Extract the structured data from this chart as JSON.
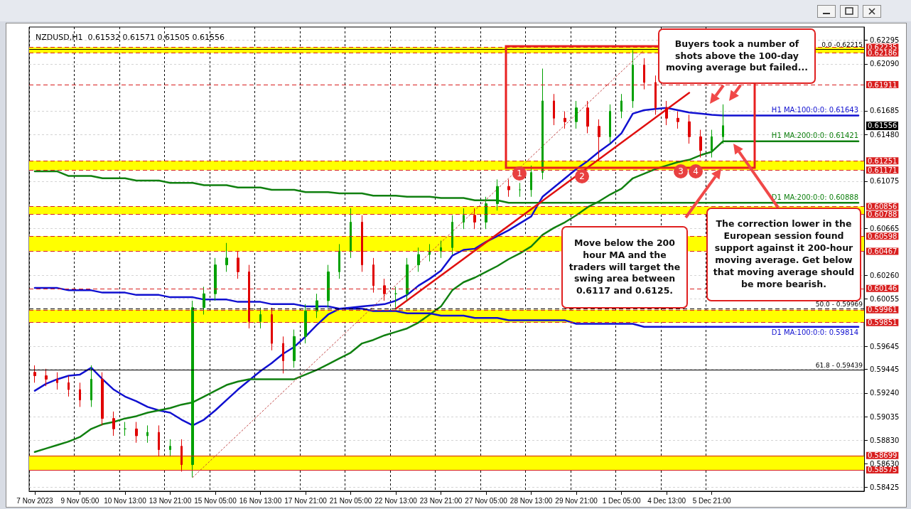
{
  "chart_data": {
    "type": "candlestick",
    "title": "NZDUSD,H1  0.61532 0.61571 0.61505 0.61556",
    "categories": [
      "7 Nov 2023",
      null,
      null,
      null,
      "9 Nov 05:00",
      null,
      null,
      null,
      "10 Nov 13:00",
      null,
      null,
      null,
      "13 Nov 21:00",
      null,
      null,
      null,
      "15 Nov 05:00",
      null,
      null,
      null,
      "16 Nov 13:00",
      null,
      null,
      null,
      "17 Nov 21:00",
      null,
      null,
      null,
      "21 Nov 05:00",
      null,
      null,
      null,
      "22 Nov 13:00",
      null,
      null,
      null,
      "23 Nov 21:00",
      null,
      null,
      null,
      "27 Nov 05:00",
      null,
      null,
      null,
      "28 Nov 13:00",
      null,
      null,
      null,
      "29 Nov 21:00",
      null,
      null,
      null,
      "1 Dec 05:00",
      null,
      null,
      null,
      "4 Dec 13:00",
      null,
      null,
      null,
      "5 Dec 21:00",
      null,
      null,
      null,
      null,
      null,
      null,
      null,
      null,
      null,
      null,
      null,
      null,
      null
    ],
    "ohlc": [
      [
        0.5942,
        0.5948,
        0.5933,
        0.5939
      ],
      [
        0.5939,
        0.5945,
        0.593,
        0.5936
      ],
      [
        0.5936,
        0.5942,
        0.5927,
        0.5933
      ],
      [
        0.5933,
        0.5939,
        0.5921,
        0.5927
      ],
      [
        0.5927,
        0.5933,
        0.5912,
        0.5918
      ],
      [
        0.5918,
        0.5948,
        0.5912,
        0.5936
      ],
      [
        0.5936,
        0.5942,
        0.5896,
        0.5902
      ],
      [
        0.5902,
        0.5908,
        0.5887,
        0.5893
      ],
      [
        0.5893,
        0.5899,
        0.5887,
        0.5893
      ],
      [
        0.5893,
        0.5899,
        0.5881,
        0.5887
      ],
      [
        0.5887,
        0.5896,
        0.5881,
        0.589
      ],
      [
        0.589,
        0.5896,
        0.5869,
        0.5875
      ],
      [
        0.5875,
        0.5884,
        0.5869,
        0.5878
      ],
      [
        0.5878,
        0.5884,
        0.5856,
        0.5862
      ],
      [
        0.5862,
        0.6004,
        0.5851,
        0.5998
      ],
      [
        0.5998,
        0.6016,
        0.5992,
        0.601
      ],
      [
        0.601,
        0.6041,
        0.6004,
        0.6035
      ],
      [
        0.6035,
        0.6054,
        0.6029,
        0.6041
      ],
      [
        0.6041,
        0.6047,
        0.6023,
        0.6029
      ],
      [
        0.6029,
        0.6035,
        0.598,
        0.5986
      ],
      [
        0.5986,
        0.5998,
        0.598,
        0.5992
      ],
      [
        0.5992,
        0.5998,
        0.5961,
        0.5967
      ],
      [
        0.5967,
        0.5973,
        0.5941,
        0.5952
      ],
      [
        0.5952,
        0.5979,
        0.5946,
        0.5973
      ],
      [
        0.5973,
        0.6001,
        0.5967,
        0.5995
      ],
      [
        0.5995,
        0.601,
        0.5989,
        0.6004
      ],
      [
        0.6004,
        0.6035,
        0.5998,
        0.6029
      ],
      [
        0.6029,
        0.6053,
        0.6023,
        0.6047
      ],
      [
        0.6047,
        0.6084,
        0.6041,
        0.6072
      ],
      [
        0.6072,
        0.6078,
        0.6029,
        0.6035
      ],
      [
        0.6035,
        0.6041,
        0.6011,
        0.6017
      ],
      [
        0.6017,
        0.6023,
        0.6004,
        0.601
      ],
      [
        0.601,
        0.6016,
        0.5998,
        0.601
      ],
      [
        0.601,
        0.6041,
        0.6004,
        0.6035
      ],
      [
        0.6035,
        0.605,
        0.6029,
        0.6044
      ],
      [
        0.6044,
        0.6053,
        0.6038,
        0.6047
      ],
      [
        0.6047,
        0.6056,
        0.6041,
        0.605
      ],
      [
        0.605,
        0.6078,
        0.6044,
        0.6072
      ],
      [
        0.6072,
        0.6084,
        0.6066,
        0.6078
      ],
      [
        0.6078,
        0.6084,
        0.6066,
        0.6072
      ],
      [
        0.6072,
        0.6094,
        0.6066,
        0.6088
      ],
      [
        0.6088,
        0.6109,
        0.6082,
        0.6103
      ],
      [
        0.6103,
        0.6109,
        0.6094,
        0.61
      ],
      [
        0.61,
        0.6106,
        0.6094,
        0.61
      ],
      [
        0.61,
        0.6121,
        0.6094,
        0.6115
      ],
      [
        0.6115,
        0.6205,
        0.6109,
        0.6177
      ],
      [
        0.6177,
        0.6183,
        0.6156,
        0.6162
      ],
      [
        0.6162,
        0.6168,
        0.6153,
        0.6159
      ],
      [
        0.6159,
        0.6177,
        0.6153,
        0.6171
      ],
      [
        0.6171,
        0.6177,
        0.6149,
        0.6155
      ],
      [
        0.6155,
        0.6161,
        0.6125,
        0.6146
      ],
      [
        0.6146,
        0.6174,
        0.614,
        0.6168
      ],
      [
        0.6168,
        0.6183,
        0.6162,
        0.6177
      ],
      [
        0.6177,
        0.6221,
        0.6171,
        0.6208
      ],
      [
        0.6208,
        0.6214,
        0.6187,
        0.6193
      ],
      [
        0.6193,
        0.6199,
        0.6165,
        0.6171
      ],
      [
        0.6171,
        0.6177,
        0.6156,
        0.6162
      ],
      [
        0.6162,
        0.6168,
        0.6153,
        0.6159
      ],
      [
        0.6159,
        0.6165,
        0.614,
        0.6146
      ],
      [
        0.6146,
        0.6152,
        0.6128,
        0.6134
      ],
      [
        0.6134,
        0.6152,
        0.6128,
        0.6146
      ],
      [
        0.6146,
        0.6174,
        0.614,
        0.61556
      ],
      null,
      null,
      null,
      null,
      null,
      null,
      null,
      null,
      null,
      null,
      null,
      null
    ],
    "colors": [
      "#e00000",
      "#e00000",
      "#e00000",
      "#e00000",
      "#e00000",
      "#00a000",
      "#e00000",
      "#e00000",
      "#00a000",
      "#e00000",
      "#00a000",
      "#e00000",
      "#00a000",
      "#e00000",
      "#00a000",
      "#00a000",
      "#00a000",
      "#00a000",
      "#e00000",
      "#e00000",
      "#00a000",
      "#e00000",
      "#e00000",
      "#00a000",
      "#00a000",
      "#00a000",
      "#00a000",
      "#00a000",
      "#00a000",
      "#e00000",
      "#e00000",
      "#e00000",
      "#00a000",
      "#00a000",
      "#00a000",
      "#00a000",
      "#00a000",
      "#00a000",
      "#00a000",
      "#e00000",
      "#00a000",
      "#00a000",
      "#e00000",
      "#00a000",
      "#00a000",
      "#00a000",
      "#e00000",
      "#e00000",
      "#00a000",
      "#e00000",
      "#e00000",
      "#00a000",
      "#00a000",
      "#00a000",
      "#e00000",
      "#e00000",
      "#e00000",
      "#e00000",
      "#e00000",
      "#e00000",
      "#00a000",
      "#00a000",
      null,
      null,
      null,
      null,
      null,
      null,
      null,
      null,
      null,
      null,
      null,
      null
    ],
    "series": [
      {
        "type": "line",
        "name": "H1 MA:100:0:0: 0.61643",
        "color": "#1010d0",
        "values": [
          0.5926,
          0.5932,
          0.5936,
          0.5939,
          0.594,
          0.5946,
          0.5936,
          0.5927,
          0.5921,
          0.5917,
          0.5912,
          0.5909,
          0.5907,
          0.5901,
          0.5896,
          0.5901,
          0.5909,
          0.5918,
          0.5927,
          0.5935,
          0.5943,
          0.595,
          0.5958,
          0.5964,
          0.5973,
          0.5983,
          0.5992,
          0.5997,
          0.5998,
          0.5999,
          0.6,
          0.6001,
          0.6004,
          0.6009,
          0.6017,
          0.6023,
          0.603,
          0.6043,
          0.6048,
          0.6049,
          0.6055,
          0.606,
          0.6065,
          0.6071,
          0.6077,
          0.6094,
          0.6102,
          0.611,
          0.6118,
          0.6125,
          0.6133,
          0.614,
          0.6149,
          0.6166,
          0.6169,
          0.617,
          0.6171,
          0.6169,
          0.6167,
          0.6166,
          0.6165,
          0.61643,
          0.61643,
          0.61643,
          0.61643,
          0.61643,
          0.61643,
          0.61643,
          0.61643,
          0.61643,
          0.61643,
          0.61643,
          0.61643,
          0.61643
        ]
      },
      {
        "type": "line",
        "name": "H1 MA:200:0:0: 0.61421",
        "color": "#108010",
        "values": [
          0.5873,
          0.5876,
          0.5879,
          0.5882,
          0.5886,
          0.5893,
          0.5897,
          0.5899,
          0.5902,
          0.5904,
          0.5907,
          0.5909,
          0.5911,
          0.5914,
          0.5916,
          0.5921,
          0.5926,
          0.5931,
          0.5934,
          0.5936,
          0.5936,
          0.5936,
          0.5936,
          0.5936,
          0.594,
          0.5944,
          0.5949,
          0.5954,
          0.5959,
          0.5967,
          0.597,
          0.5974,
          0.5977,
          0.598,
          0.5985,
          0.5992,
          0.5999,
          0.6013,
          0.602,
          0.6024,
          0.6029,
          0.6034,
          0.604,
          0.6045,
          0.6051,
          0.6061,
          0.6067,
          0.6072,
          0.6078,
          0.6085,
          0.609,
          0.6096,
          0.6101,
          0.611,
          0.6114,
          0.6118,
          0.6121,
          0.6124,
          0.6126,
          0.613,
          0.6133,
          0.61421,
          0.61421,
          0.61421,
          0.61421,
          0.61421,
          0.61421,
          0.61421,
          0.61421,
          0.61421,
          0.61421,
          0.61421,
          0.61421,
          0.61421
        ]
      },
      {
        "type": "line",
        "name": "D1 MA:200:0:0: 0.60888",
        "color": "#108010",
        "values": [
          0.6116,
          0.6116,
          0.6116,
          0.6112,
          0.6112,
          0.6112,
          0.611,
          0.611,
          0.611,
          0.6108,
          0.6108,
          0.6108,
          0.6106,
          0.6106,
          0.6106,
          0.6104,
          0.6104,
          0.6104,
          0.6102,
          0.6102,
          0.6102,
          0.61,
          0.61,
          0.61,
          0.6098,
          0.6098,
          0.6098,
          0.6097,
          0.6097,
          0.6097,
          0.6095,
          0.6095,
          0.6095,
          0.6094,
          0.6094,
          0.6094,
          0.6093,
          0.6093,
          0.6093,
          0.6091,
          0.6091,
          0.6091,
          0.60888,
          0.60888,
          0.60888,
          0.60888,
          0.60888,
          0.60888,
          0.60888,
          0.60888,
          0.60888,
          0.60888,
          0.60888,
          0.60888,
          0.60888,
          0.60888,
          0.60888,
          0.60888,
          0.60888,
          0.60888,
          0.60888,
          0.60888,
          0.60888,
          0.60888,
          0.60888,
          0.60888,
          0.60888,
          0.60888,
          0.60888,
          0.60888,
          0.60888,
          0.60888,
          0.60888,
          0.60888
        ]
      },
      {
        "type": "line",
        "name": "D1 MA:100:0:0: 0.59814",
        "color": "#1010d0",
        "values": [
          0.6015,
          0.6015,
          0.6015,
          0.6013,
          0.6013,
          0.6013,
          0.6011,
          0.6011,
          0.6011,
          0.6009,
          0.6009,
          0.6009,
          0.6007,
          0.6007,
          0.6007,
          0.6005,
          0.6005,
          0.6005,
          0.6003,
          0.6003,
          0.6003,
          0.6001,
          0.6001,
          0.6001,
          0.5999,
          0.5999,
          0.5999,
          0.5997,
          0.5997,
          0.5997,
          0.5995,
          0.5995,
          0.5995,
          0.5993,
          0.5993,
          0.5993,
          0.5991,
          0.5991,
          0.5991,
          0.5989,
          0.5989,
          0.5989,
          0.5987,
          0.5987,
          0.5987,
          0.5987,
          0.5987,
          0.5987,
          0.5984,
          0.5984,
          0.5984,
          0.5984,
          0.5984,
          0.5984,
          0.59814,
          0.59814,
          0.59814,
          0.59814,
          0.59814,
          0.59814,
          0.59814,
          0.59814,
          0.59814,
          0.59814,
          0.59814,
          0.59814,
          0.59814,
          0.59814,
          0.59814,
          0.59814,
          0.59814,
          0.59814,
          0.59814,
          0.59814
        ]
      },
      {
        "type": "line",
        "color": "#e01010",
        "values": [
          null,
          null,
          null,
          null,
          null,
          null,
          null,
          null,
          null,
          null,
          null,
          null,
          null,
          null,
          null,
          null,
          null,
          null,
          null,
          null,
          null,
          null,
          null,
          null,
          null,
          null,
          null,
          null,
          null,
          null,
          null,
          null,
          0.5997,
          null,
          null,
          null,
          null,
          null,
          null,
          null,
          null,
          null,
          null,
          null,
          null,
          null,
          null,
          null,
          null,
          null,
          null,
          null,
          null,
          null,
          null,
          null,
          null,
          null,
          0.6184,
          null,
          null,
          null,
          null,
          null,
          null,
          null,
          null,
          null,
          null,
          null,
          null,
          null,
          null,
          null
        ]
      },
      {
        "type": "line",
        "color": "#c04040",
        "line_style": "dotted",
        "values": [
          null,
          null,
          null,
          null,
          null,
          null,
          null,
          null,
          null,
          null,
          null,
          null,
          null,
          null,
          0.5851,
          null,
          null,
          null,
          null,
          null,
          null,
          null,
          null,
          null,
          null,
          null,
          null,
          null,
          null,
          null,
          null,
          null,
          null,
          null,
          null,
          null,
          null,
          null,
          null,
          null,
          null,
          null,
          null,
          null,
          null,
          null,
          null,
          null,
          null,
          null,
          null,
          null,
          null,
          null,
          0.6221,
          null,
          null,
          null,
          null,
          null,
          null,
          null,
          null,
          null,
          null,
          null,
          null,
          null,
          null,
          null,
          null,
          null,
          null,
          null
        ]
      }
    ],
    "ylim": [
      0.5839,
      0.6241
    ],
    "yticks": [
      0.62295,
      {
        "value": 0.6209,
        "label": "0.62090"
      },
      0.61685,
      {
        "value": 0.6148,
        "label": "0.61480"
      },
      0.61075,
      0.60665,
      {
        "value": 0.6026,
        "label": "0.60260"
      },
      0.60055,
      0.59645,
      0.59445,
      {
        "value": 0.5924,
        "label": "0.59240"
      },
      0.59035,
      {
        "value": 0.5883,
        "label": "0.58830"
      },
      {
        "value": 0.5863,
        "label": "0.58630"
      },
      0.58425
    ],
    "grid": true,
    "marker": "none",
    "bands": [
      {
        "axis": "y",
        "from": 0.62186,
        "to": 0.62235,
        "color": "#ffff00"
      },
      {
        "axis": "y",
        "from": 0.61171,
        "to": 0.61251,
        "color": "#ffff00"
      },
      {
        "axis": "y",
        "from": 0.60788,
        "to": 0.60856,
        "color": "#ffff00"
      },
      {
        "axis": "y",
        "from": 0.60467,
        "to": 0.60598,
        "color": "#ffff00"
      },
      {
        "axis": "y",
        "from": 0.59851,
        "to": 0.59961,
        "color": "#ffff00"
      },
      {
        "axis": "y",
        "from": 0.58575,
        "to": 0.58699,
        "color": "#ffff00"
      }
    ],
    "ref_lines": [
      {
        "axis": "y",
        "value": 0.62235,
        "label": "0.62235",
        "color": "#d81e1e",
        "line_style": "dashed"
      },
      {
        "axis": "y",
        "value": 0.62186,
        "label": "0.62186",
        "color": "#d81e1e",
        "line_style": "dashed"
      },
      {
        "axis": "y",
        "value": 0.62215,
        "color": "#000000",
        "line_style": "solid"
      },
      {
        "axis": "y",
        "value": 0.61911,
        "label": "0.61911",
        "color": "#d81e1e",
        "line_style": "dashed"
      },
      {
        "axis": "y",
        "value": 0.61251,
        "label": "0.61251",
        "color": "#d81e1e",
        "line_style": "dashed"
      },
      {
        "axis": "y",
        "value": 0.61171,
        "label": "0.61171",
        "color": "#d81e1e",
        "line_style": "dashed"
      },
      {
        "axis": "y",
        "value": 0.60856,
        "label": "0.60856",
        "color": "#d81e1e",
        "line_style": "dashed"
      },
      {
        "axis": "y",
        "value": 0.60788,
        "label": "0.60788",
        "color": "#d81e1e",
        "line_style": "dashed"
      },
      {
        "axis": "y",
        "value": 0.60598,
        "label": "0.60598",
        "color": "#d81e1e",
        "line_style": "dashed"
      },
      {
        "axis": "y",
        "value": 0.60467,
        "label": "0.60467",
        "color": "#d81e1e",
        "line_style": "dashed"
      },
      {
        "axis": "y",
        "value": 0.60146,
        "label": "0.60146",
        "color": "#d81e1e",
        "line_style": "dashed"
      },
      {
        "axis": "y",
        "value": 0.59969,
        "color": "#000000",
        "line_style": "dashed"
      },
      {
        "axis": "y",
        "value": 0.59961,
        "label": "0.59961",
        "color": "#d81e1e",
        "line_style": "dashed"
      },
      {
        "axis": "y",
        "value": 0.59851,
        "label": "0.59851",
        "color": "#d81e1e",
        "line_style": "dashed"
      },
      {
        "axis": "y",
        "value": 0.59439,
        "color": "#000000",
        "line_style": "solid"
      },
      {
        "axis": "y",
        "value": 0.58699,
        "label": "0.58699",
        "color": "#d81e1e",
        "line_style": "solid"
      },
      {
        "axis": "y",
        "value": 0.58575,
        "label": "0.58575",
        "color": "#d81e1e",
        "line_style": "solid"
      }
    ],
    "annotations": [
      "Buyers took a number of shots above the 100-day moving average but failed...",
      "Move below the 200 hour MA and the traders will target the swing area between 0.6117 and 0.6125.",
      "The correction lower in the European session found support against it 200-hour moving average. Get below that moving average should be more bearish.",
      "1",
      "2",
      "3",
      "4",
      "0.61556",
      {
        "text": "0.0 -0.62215",
        "y": 0.62215
      },
      {
        "text": "50.0 - 0.59969",
        "y": 0.59969
      },
      {
        "text": "61.8 - 0.59439",
        "y": 0.59439
      }
    ]
  }
}
